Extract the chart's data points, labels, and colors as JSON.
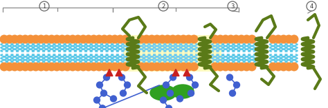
{
  "figsize": [
    4.74,
    1.57
  ],
  "dpi": 100,
  "bg_color": "#ffffff",
  "colors": {
    "head_orange": "#F4913A",
    "tail_blue": "#5BC8E8",
    "tail_blue_outline": "#3AAAD0",
    "protein_green": "#5A7A18",
    "raft_yellow": "#FDFAC0",
    "anchor_red": "#C82020",
    "chain_blue": "#4060D0",
    "gpi_green": "#30A020",
    "bracket_gray": "#888888"
  }
}
